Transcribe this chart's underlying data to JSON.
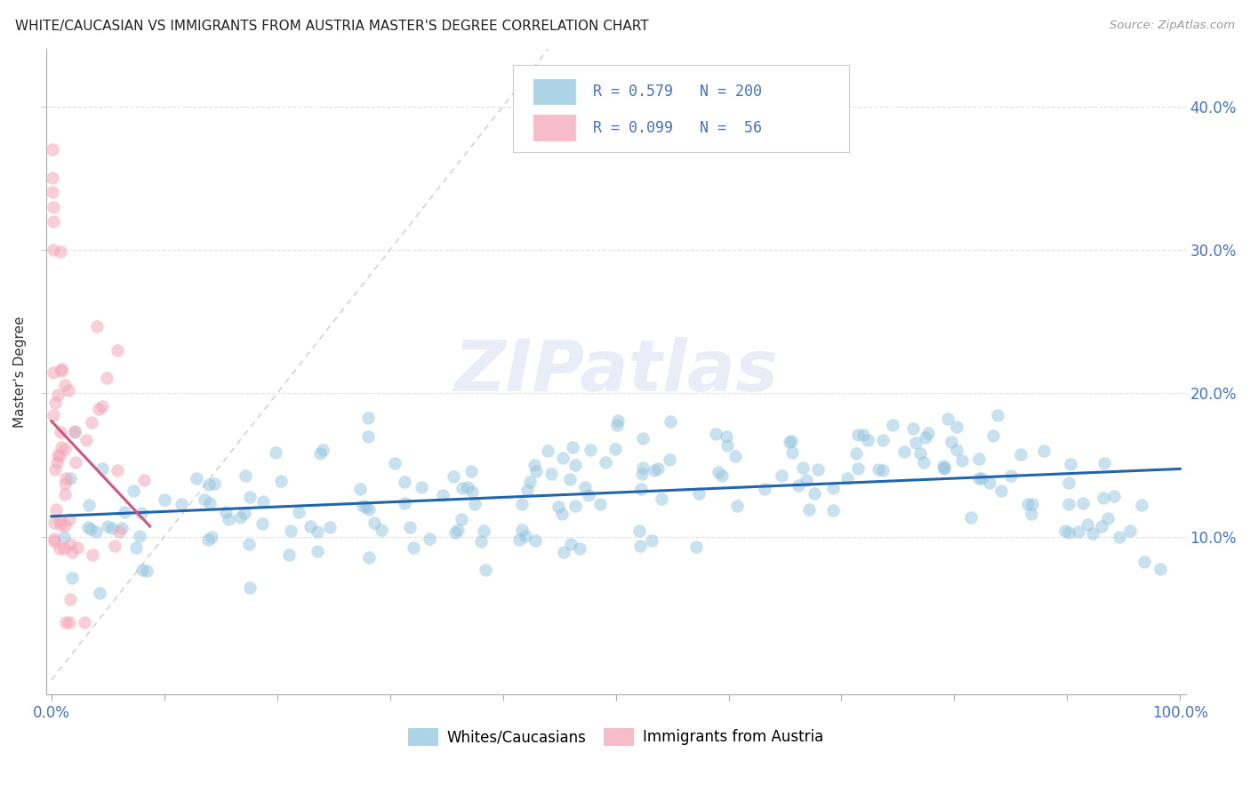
{
  "title": "WHITE/CAUCASIAN VS IMMIGRANTS FROM AUSTRIA MASTER'S DEGREE CORRELATION CHART",
  "source": "Source: ZipAtlas.com",
  "ylabel": "Master's Degree",
  "watermark": "ZIPatlas",
  "blue_R": 0.579,
  "blue_N": 200,
  "pink_R": 0.099,
  "pink_N": 56,
  "blue_color": "#92c5de",
  "pink_color": "#f4a6b8",
  "blue_line_color": "#2166ac",
  "pink_line_color": "#d6537a",
  "legend_blue_label": "Whites/Caucasians",
  "legend_pink_label": "Immigrants from Austria",
  "diag_line_color": "#cccccc",
  "grid_color": "#e0e0e0",
  "right_yaxis_color": "#4472c4",
  "yticks": [
    0.1,
    0.2,
    0.3,
    0.4
  ],
  "ytick_labels": [
    "10.0%",
    "20.0%",
    "30.0%",
    "40.0%"
  ],
  "xlim": [
    -0.005,
    1.005
  ],
  "ylim": [
    -0.01,
    0.44
  ]
}
